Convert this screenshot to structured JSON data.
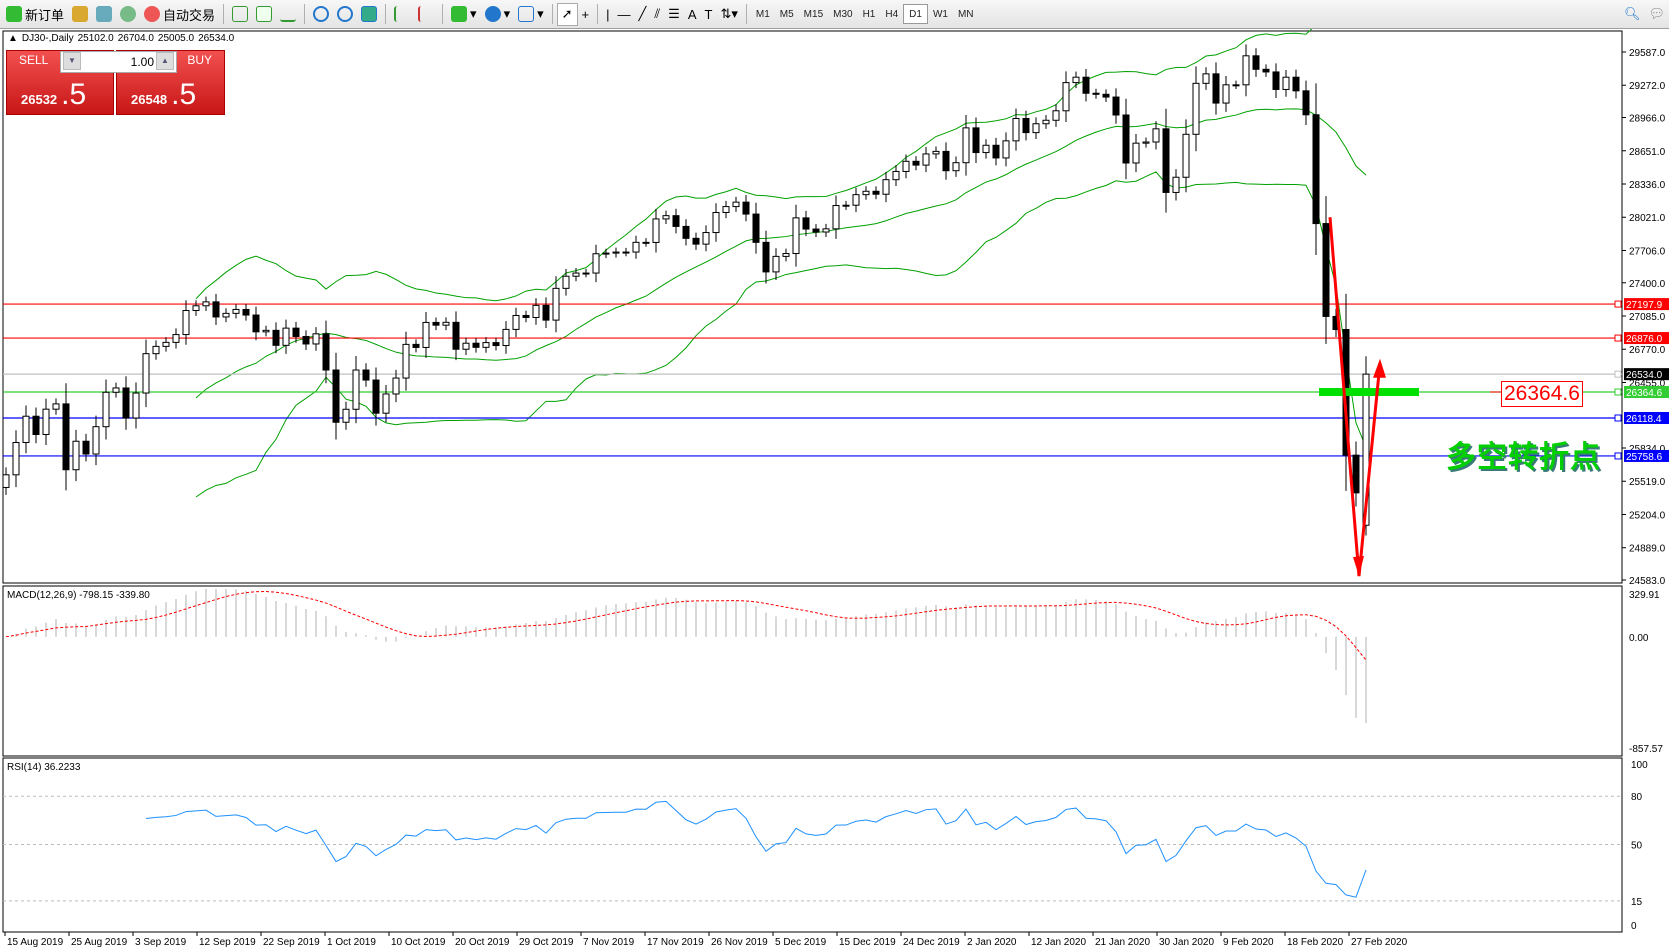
{
  "toolbar": {
    "new_order": "新订单",
    "auto_trading": "自动交易",
    "timeframes": [
      "M1",
      "M5",
      "M15",
      "M30",
      "H1",
      "H4",
      "D1",
      "W1",
      "MN"
    ],
    "active_timeframe": "D1"
  },
  "chart_header": {
    "symbol": "DJ30-,Daily",
    "open": "25102.0",
    "high": "26704.0",
    "low": "25005.0",
    "close": "26534.0"
  },
  "trade_panel": {
    "sell_label": "SELL",
    "buy_label": "BUY",
    "lots": "1.00",
    "sell_main": "26532",
    "sell_pips": ".5",
    "buy_main": "26548",
    "buy_pips": ".5"
  },
  "annotations": {
    "level_note": "26364.6",
    "chinese_text": "多空转折点"
  },
  "colors": {
    "up_candle": "#ffffff",
    "down_candle": "#000000",
    "bollinger": "#00a000",
    "macd_signal": "#ff0000",
    "rsi": "#1e90ff",
    "red_line": "#ff0000",
    "green_line": "#32cd32",
    "blue_line": "#0000ff",
    "arrow": "#ff0000"
  },
  "chart_data": {
    "type": "candlestick",
    "indicators": [
      "Bollinger Bands",
      "MACD(12,26,9)",
      "RSI(14)"
    ],
    "price_ticks": [
      "29587.0",
      "29272.0",
      "28966.0",
      "28651.0",
      "28336.0",
      "28021.0",
      "27706.0",
      "27400.0",
      "27085.0",
      "26770.0",
      "26455.0",
      "25834.0",
      "25519.0",
      "25204.0",
      "24889.0",
      "24583.0"
    ],
    "price_range": [
      24583,
      29587
    ],
    "date_labels": [
      "15 Aug 2019",
      "25 Aug 2019",
      "3 Sep 2019",
      "12 Sep 2019",
      "22 Sep 2019",
      "1 Oct 2019",
      "10 Oct 2019",
      "20 Oct 2019",
      "29 Oct 2019",
      "7 Nov 2019",
      "17 Nov 2019",
      "26 Nov 2019",
      "5 Dec 2019",
      "15 Dec 2019",
      "24 Dec 2019",
      "2 Jan 2020",
      "12 Jan 2020",
      "21 Jan 2020",
      "30 Jan 2020",
      "9 Feb 2020",
      "18 Feb 2020",
      "27 Feb 2020"
    ],
    "closes": [
      25580,
      25886,
      26135,
      25962,
      26202,
      26252,
      25628,
      25898,
      25777,
      26036,
      26362,
      26403,
      26118,
      26355,
      26728,
      26797,
      26835,
      26909,
      27137,
      27182,
      27219,
      27076,
      27110,
      27147,
      27094,
      26935,
      26949,
      26807,
      26970,
      26891,
      26820,
      26916,
      26573,
      26078,
      26201,
      26573,
      26478,
      26164,
      26346,
      26497,
      26816,
      26787,
      27024,
      26998,
      27025,
      26770,
      26827,
      26788,
      26833,
      26805,
      26958,
      27090,
      27071,
      27186,
      27046,
      27347,
      27462,
      27492,
      27492,
      27675,
      27681,
      27691,
      27691,
      27783,
      27782,
      28005,
      28036,
      27934,
      27821,
      27766,
      27876,
      28066,
      28122,
      28164,
      28051,
      27783,
      27503,
      27650,
      27677,
      28015,
      27909,
      27881,
      27911,
      28132,
      28135,
      28235,
      28267,
      28239,
      28377,
      28455,
      28551,
      28515,
      28621,
      28645,
      28462,
      28538,
      28868,
      28634,
      28703,
      28583,
      28745,
      28957,
      28823,
      28907,
      28940,
      29030,
      29297,
      29348,
      29196,
      29186,
      29160,
      28990,
      28535,
      28723,
      28734,
      28859,
      28256,
      28400,
      28807,
      29290,
      29380,
      29103,
      29276,
      29276,
      29551,
      29423,
      29398,
      29232,
      29348,
      29219,
      28992,
      27961,
      27081,
      26957,
      25766,
      25409,
      26534
    ],
    "last_bar": {
      "open": 25102.0,
      "high": 26704.0,
      "low": 25005.0,
      "close": 26534.0
    },
    "horizontal_lines": [
      {
        "price": "27197.9",
        "color": "#ff0000"
      },
      {
        "price": "26876.0",
        "color": "#ff0000"
      },
      {
        "price": "26534.0",
        "color": "#c0c0c0",
        "label_bg": "#000000"
      },
      {
        "price": "26364.6",
        "color": "#32cd32"
      },
      {
        "price": "26118.4",
        "color": "#0000ff"
      },
      {
        "price": "25758.6",
        "color": "#0000ff"
      }
    ],
    "macd": {
      "label": "MACD(12,26,9) -798.15 -339.80",
      "ticks": [
        "329.91",
        "0.00",
        "-857.57"
      ],
      "range": [
        -857.57,
        329.91
      ]
    },
    "rsi": {
      "label": "RSI(14) 36.2233",
      "ticks": [
        "100",
        "80",
        "50",
        "15",
        "0"
      ],
      "levels": [
        80,
        50,
        15
      ]
    }
  }
}
